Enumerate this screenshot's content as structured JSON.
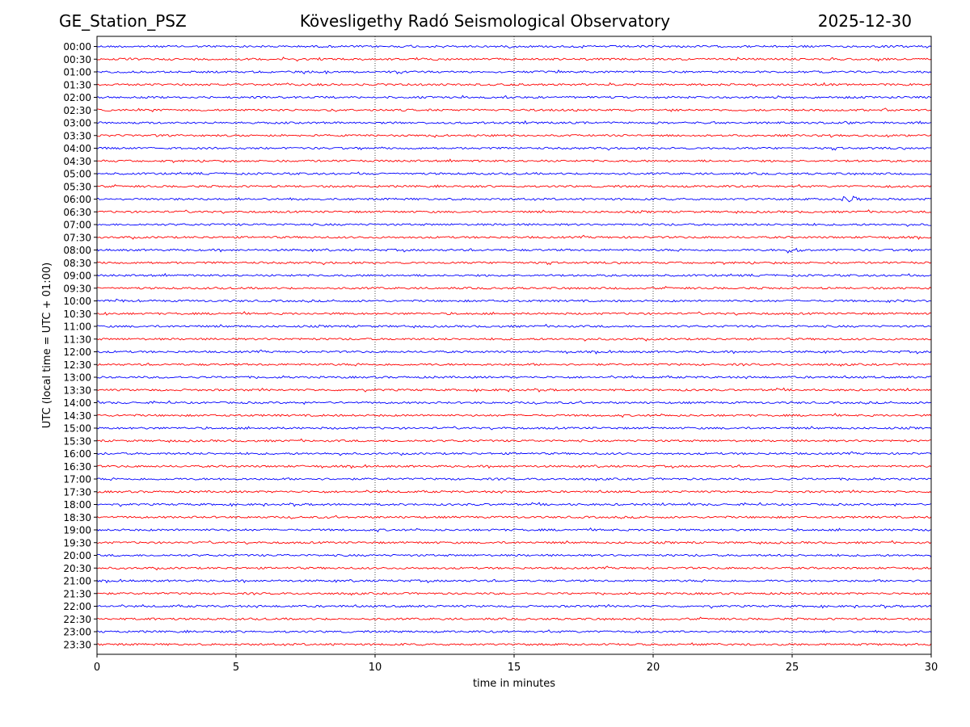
{
  "header": {
    "station": "GE_Station_PSZ",
    "observatory": "Kövesligethy Radó Seismological Observatory",
    "date": "2025-12-30"
  },
  "chart_data": {
    "type": "line",
    "title": "Kövesligethy Radó Seismological Observatory",
    "xlabel": "time in minutes",
    "ylabel": "UTC (local time = UTC + 01:00)",
    "xlim": [
      0,
      30
    ],
    "xticks": [
      0,
      5,
      10,
      15,
      20,
      25,
      30
    ],
    "grid": "vertical dotted lines at 5, 10, 15, 20, 25",
    "colors": {
      "even_hour": "#0000ff",
      "half_hour": "#ff0000"
    },
    "rows": [
      "00:00",
      "00:30",
      "01:00",
      "01:30",
      "02:00",
      "02:30",
      "03:00",
      "03:30",
      "04:00",
      "04:30",
      "05:00",
      "05:30",
      "06:00",
      "06:30",
      "07:00",
      "07:30",
      "08:00",
      "08:30",
      "09:00",
      "09:30",
      "10:00",
      "10:30",
      "11:00",
      "11:30",
      "12:00",
      "12:30",
      "13:00",
      "13:30",
      "14:00",
      "14:30",
      "15:00",
      "15:30",
      "16:00",
      "16:30",
      "17:00",
      "17:30",
      "18:00",
      "18:30",
      "19:00",
      "19:30",
      "20:00",
      "20:30",
      "21:00",
      "21:30",
      "22:00",
      "22:30",
      "23:00",
      "23:30"
    ],
    "events": [
      {
        "row": "06:00",
        "start_min": 26.8,
        "duration_min": 1.2,
        "amplitude": 1.0
      },
      {
        "row": "08:00",
        "start_min": 24.7,
        "duration_min": 1.6,
        "amplitude": 0.55
      },
      {
        "row": "10:00",
        "start_min": 0.5,
        "duration_min": 1.5,
        "amplitude": 0.18
      },
      {
        "row": "10:00",
        "start_min": 28.4,
        "duration_min": 1.6,
        "amplitude": 0.18
      },
      {
        "row": "10:30",
        "start_min": 0.3,
        "duration_min": 0.7,
        "amplitude": 0.18
      },
      {
        "row": "22:30",
        "start_min": 1.7,
        "duration_min": 0.8,
        "amplitude": 0.25
      }
    ]
  }
}
